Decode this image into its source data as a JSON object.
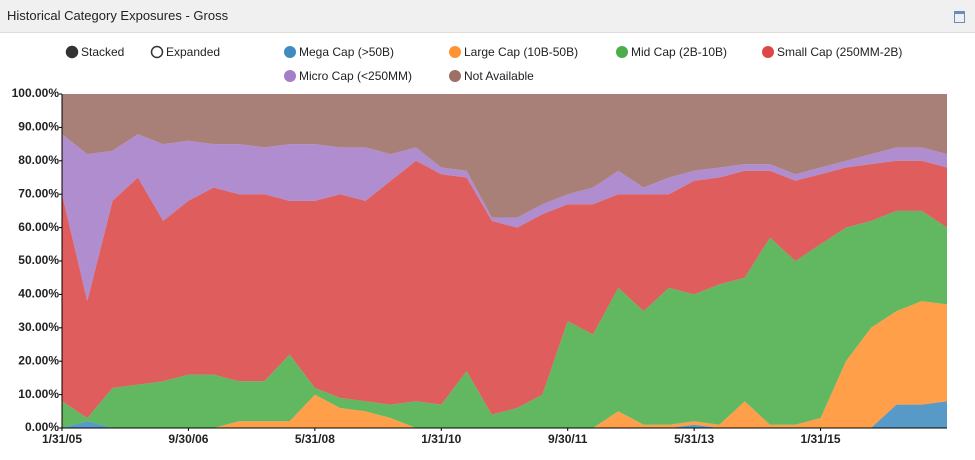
{
  "chart_data": {
    "type": "stacked-area",
    "title": "Historical Category Exposures - Gross",
    "controls": [
      "Stacked",
      "Expanded"
    ],
    "x": [
      "1/31/05",
      null,
      null,
      null,
      null,
      "9/30/06",
      null,
      null,
      null,
      null,
      "5/31/08",
      null,
      null,
      null,
      null,
      "1/31/10",
      null,
      null,
      null,
      null,
      "9/30/11",
      null,
      null,
      null,
      null,
      "5/31/13",
      null,
      null,
      null,
      null,
      "1/31/15",
      null,
      null,
      null,
      null,
      null
    ],
    "ylim": [
      0,
      100
    ],
    "yticks": [
      {
        "value": 0,
        "label": "0.00%"
      },
      {
        "value": 10,
        "label": "10.00%"
      },
      {
        "value": 20,
        "label": "20.00%"
      },
      {
        "value": 30,
        "label": "30.00%"
      },
      {
        "value": 40,
        "label": "40.00%"
      },
      {
        "value": 50,
        "label": "50.00%"
      },
      {
        "value": 60,
        "label": "60.00%"
      },
      {
        "value": 70,
        "label": "70.00%"
      },
      {
        "value": 80,
        "label": "80.00%"
      },
      {
        "value": 90,
        "label": "90.00%"
      },
      {
        "value": 100,
        "label": "100.00%"
      }
    ],
    "series": [
      {
        "name": "Mega Cap (>50B)",
        "color": "#1f77b4",
        "values": [
          0,
          2,
          0,
          0,
          0,
          0,
          0,
          0,
          0,
          0,
          0,
          0,
          0,
          0,
          0,
          0,
          0,
          0,
          0,
          0,
          0,
          0,
          0,
          0,
          0,
          1,
          0,
          0,
          0,
          0,
          0,
          0,
          0,
          7,
          7,
          8
        ]
      },
      {
        "name": "Large Cap (10B-50B)",
        "color": "#ff7f0e",
        "values": [
          0,
          0,
          0,
          0,
          0,
          0,
          0,
          2,
          2,
          2,
          10,
          6,
          5,
          3,
          0,
          0,
          0,
          0,
          0,
          0,
          0,
          0,
          5,
          1,
          1,
          1,
          1,
          8,
          1,
          1,
          3,
          20,
          30,
          28,
          31,
          29
        ]
      },
      {
        "name": "Mid Cap (2B-10B)",
        "color": "#2ca02c",
        "values": [
          8,
          1,
          12,
          13,
          14,
          16,
          16,
          12,
          12,
          20,
          2,
          3,
          3,
          4,
          8,
          7,
          17,
          4,
          6,
          10,
          32,
          28,
          37,
          34,
          41,
          38,
          42,
          37,
          56,
          49,
          52,
          40,
          32,
          30,
          27,
          23
        ]
      },
      {
        "name": "Small Cap (250MM-2B)",
        "color": "#d62728",
        "values": [
          62,
          35,
          56,
          62,
          48,
          52,
          56,
          56,
          56,
          46,
          56,
          61,
          60,
          67,
          72,
          69,
          58,
          58,
          54,
          54,
          35,
          39,
          28,
          35,
          28,
          34,
          32,
          32,
          20,
          24,
          21,
          18,
          17,
          15,
          15,
          18
        ]
      },
      {
        "name": "Micro Cap (<250MM)",
        "color": "#9467bd",
        "values": [
          18,
          44,
          15,
          13,
          23,
          18,
          13,
          15,
          14,
          17,
          17,
          14,
          16,
          8,
          4,
          2,
          2,
          1,
          3,
          3,
          3,
          5,
          7,
          2,
          5,
          3,
          3,
          2,
          2,
          2,
          2,
          2,
          3,
          4,
          4,
          4
        ]
      },
      {
        "name": "Not Available",
        "color": "#8c564b",
        "values": [
          12,
          18,
          17,
          12,
          15,
          14,
          15,
          15,
          16,
          15,
          15,
          16,
          16,
          18,
          16,
          22,
          23,
          37,
          37,
          33,
          30,
          28,
          23,
          28,
          25,
          23,
          22,
          21,
          21,
          24,
          22,
          20,
          18,
          16,
          16,
          18
        ]
      }
    ]
  }
}
